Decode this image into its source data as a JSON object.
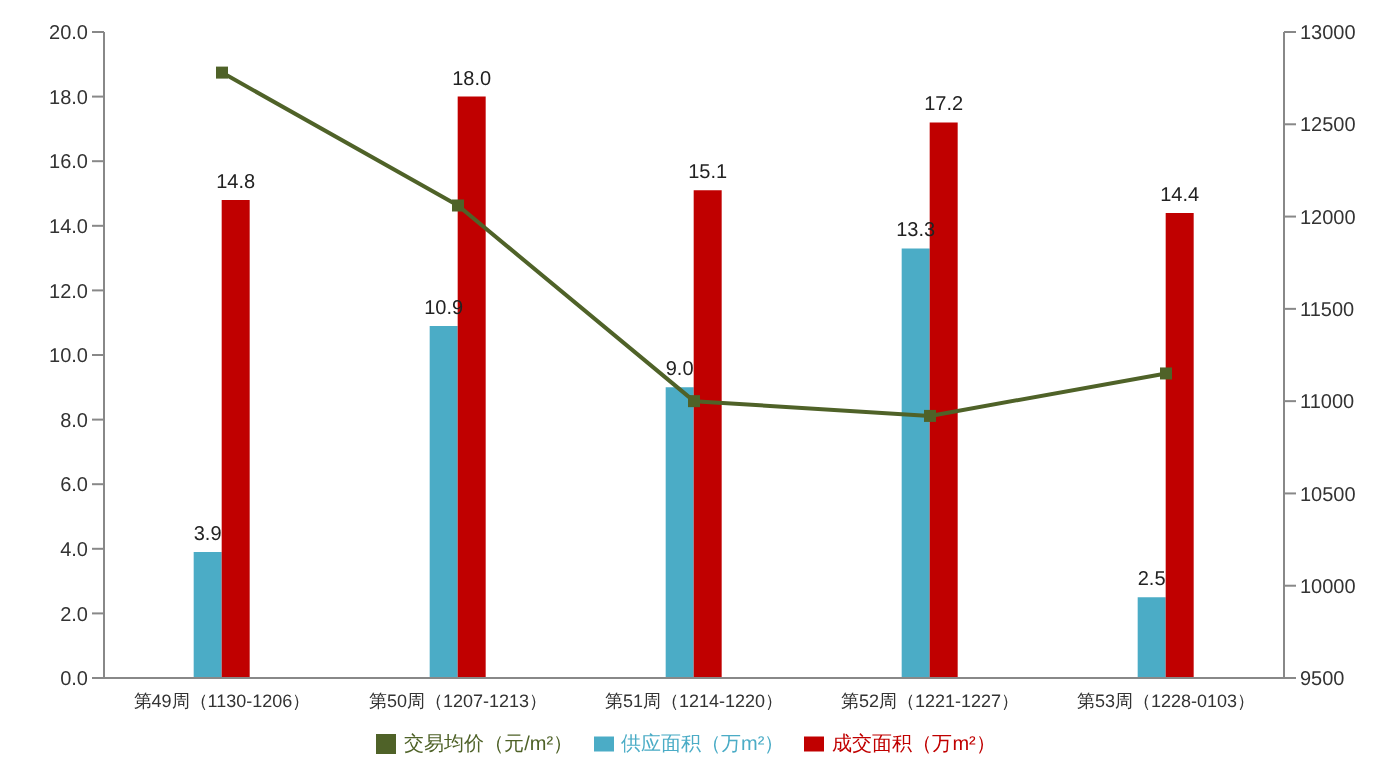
{
  "chart_data": {
    "type": "bar",
    "categories": [
      "第49周（1130-1206）",
      "第50周（1207-1213）",
      "第51周（1214-1220）",
      "第52周（1221-1227）",
      "第53周（1228-0103）"
    ],
    "series": [
      {
        "name": "供应面积（万m²）",
        "color": "#4bacc6",
        "values": [
          3.9,
          10.9,
          9.0,
          13.3,
          2.5
        ],
        "value_labels": [
          "3.9",
          "10.9",
          "9.0",
          "13.3",
          "2.5"
        ]
      },
      {
        "name": "成交面积（万m²）",
        "color": "#c00000",
        "values": [
          14.8,
          18.0,
          15.1,
          17.2,
          14.4
        ],
        "value_labels": [
          "14.8",
          "18.0",
          "15.1",
          "17.2",
          "14.4"
        ]
      },
      {
        "name": "交易均价（元/m²）",
        "type": "line",
        "axis": "y2",
        "color": "#4f6228",
        "marker": "square",
        "values": [
          12780,
          12060,
          11000,
          10920,
          11150
        ]
      }
    ],
    "ylim": [
      0,
      20
    ],
    "yticks": [
      {
        "value": 0,
        "label": "0.0"
      },
      {
        "value": 2,
        "label": "2.0"
      },
      {
        "value": 4,
        "label": "4.0"
      },
      {
        "value": 6,
        "label": "6.0"
      },
      {
        "value": 8,
        "label": "8.0"
      },
      {
        "value": 10,
        "label": "10.0"
      },
      {
        "value": 12,
        "label": "12.0"
      },
      {
        "value": 14,
        "label": "14.0"
      },
      {
        "value": 16,
        "label": "16.0"
      },
      {
        "value": 18,
        "label": "18.0"
      },
      {
        "value": 20,
        "label": "20.0"
      }
    ],
    "y2lim": [
      9500,
      13000
    ],
    "y2ticks": [
      9500,
      10000,
      10500,
      11000,
      11500,
      12000,
      12500,
      13000
    ],
    "grid": false,
    "legend": "bottom"
  }
}
